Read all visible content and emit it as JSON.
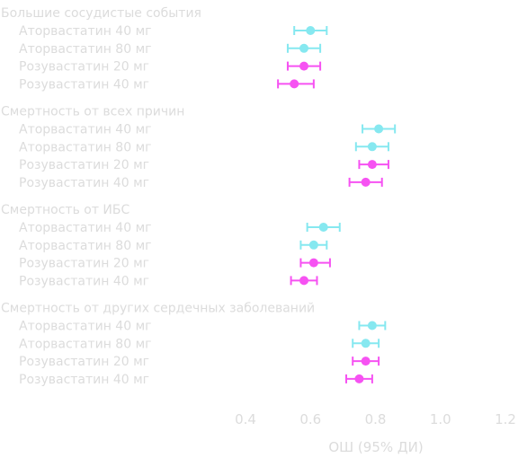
{
  "chart_data": {
    "type": "forest",
    "xlabel": "ОШ (95% ДИ)",
    "xlim": [
      0.4,
      1.2
    ],
    "xticks": [
      "0.4",
      "0.6",
      "0.8",
      "1.0",
      "1.2"
    ],
    "xtick_values": [
      0.4,
      0.6,
      0.8,
      1.0,
      1.2
    ],
    "colors": {
      "atorvastatin": "#86e8f0",
      "rosuvastatin": "#f652f2",
      "text": "#dcdcdc"
    },
    "groups": [
      {
        "title": "Большие сосудистые события",
        "rows": [
          {
            "label": "Аторвастатин 40 мг",
            "drug": "atorvastatin",
            "or": 0.6,
            "lo": 0.55,
            "hi": 0.65
          },
          {
            "label": "Аторвастатин 80 мг",
            "drug": "atorvastatin",
            "or": 0.58,
            "lo": 0.53,
            "hi": 0.63
          },
          {
            "label": "Розувастатин 20 мг",
            "drug": "rosuvastatin",
            "or": 0.58,
            "lo": 0.53,
            "hi": 0.63
          },
          {
            "label": "Розувастатин 40 мг",
            "drug": "rosuvastatin",
            "or": 0.55,
            "lo": 0.5,
            "hi": 0.61
          }
        ]
      },
      {
        "title": "Смертность от всех причин",
        "rows": [
          {
            "label": "Аторвастатин 40 мг",
            "drug": "atorvastatin",
            "or": 0.81,
            "lo": 0.76,
            "hi": 0.86
          },
          {
            "label": "Аторвастатин 80 мг",
            "drug": "atorvastatin",
            "or": 0.79,
            "lo": 0.74,
            "hi": 0.84
          },
          {
            "label": "Розувастатин 20 мг",
            "drug": "rosuvastatin",
            "or": 0.79,
            "lo": 0.75,
            "hi": 0.84
          },
          {
            "label": "Розувастатин 40 мг",
            "drug": "rosuvastatin",
            "or": 0.77,
            "lo": 0.72,
            "hi": 0.82
          }
        ]
      },
      {
        "title": "Смертность от ИБС",
        "rows": [
          {
            "label": "Аторвастатин 40 мг",
            "drug": "atorvastatin",
            "or": 0.64,
            "lo": 0.59,
            "hi": 0.69
          },
          {
            "label": "Аторвастатин 80 мг",
            "drug": "atorvastatin",
            "or": 0.61,
            "lo": 0.57,
            "hi": 0.65
          },
          {
            "label": "Розувастатин 20 мг",
            "drug": "rosuvastatin",
            "or": 0.61,
            "lo": 0.57,
            "hi": 0.66
          },
          {
            "label": "Розувастатин 40 мг",
            "drug": "rosuvastatin",
            "or": 0.58,
            "lo": 0.54,
            "hi": 0.62
          }
        ]
      },
      {
        "title": "Смертность от других сердечных заболеваний",
        "rows": [
          {
            "label": "Аторвастатин 40 мг",
            "drug": "atorvastatin",
            "or": 0.79,
            "lo": 0.75,
            "hi": 0.83
          },
          {
            "label": "Аторвастатин 80 мг",
            "drug": "atorvastatin",
            "or": 0.77,
            "lo": 0.73,
            "hi": 0.81
          },
          {
            "label": "Розувастатин 20 мг",
            "drug": "rosuvastatin",
            "or": 0.77,
            "lo": 0.73,
            "hi": 0.81
          },
          {
            "label": "Розувастатин 40 мг",
            "drug": "rosuvastatin",
            "or": 0.75,
            "lo": 0.71,
            "hi": 0.79
          }
        ]
      }
    ]
  }
}
